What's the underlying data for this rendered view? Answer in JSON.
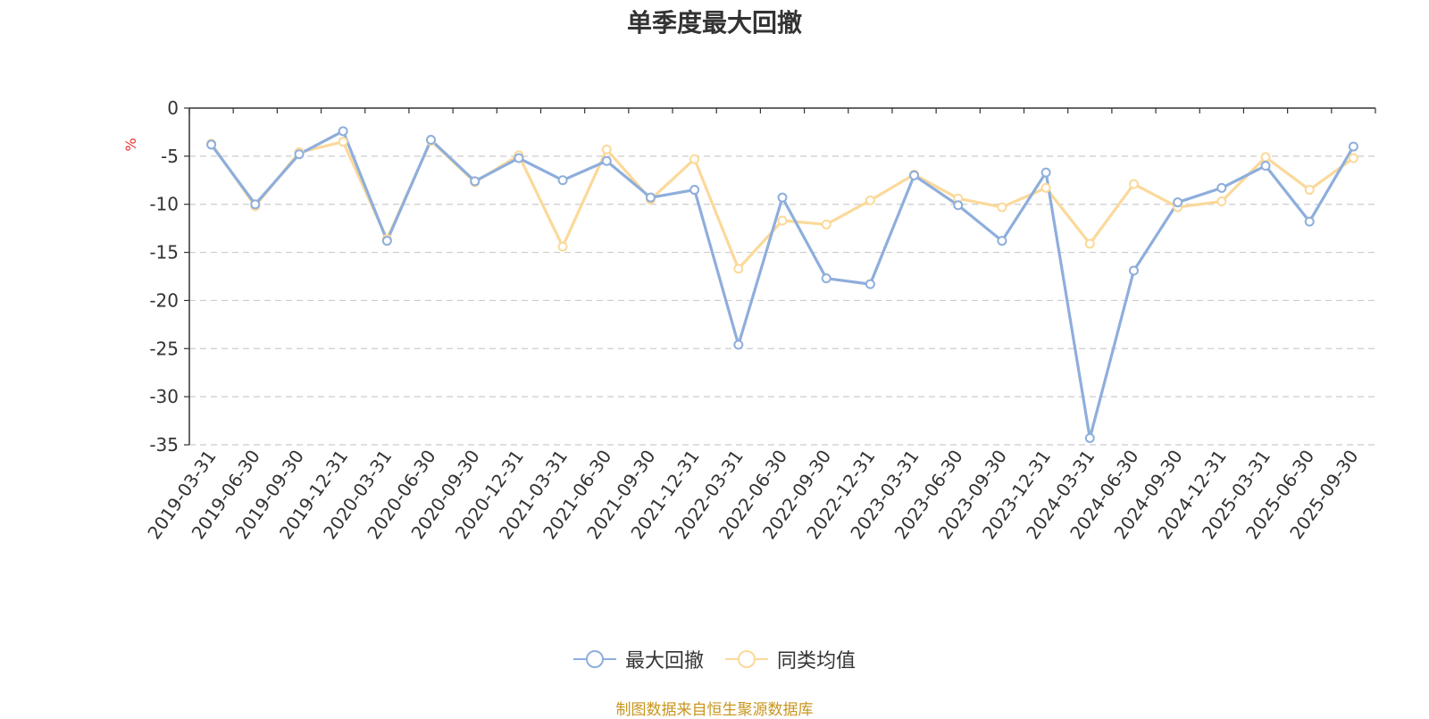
{
  "chart_data": {
    "type": "line",
    "title": "单季度最大回撤",
    "ylabel": "%",
    "ylim": [
      -35,
      0
    ],
    "yticks": [
      0,
      -5,
      -10,
      -15,
      -20,
      -25,
      -30,
      -35
    ],
    "grid": true,
    "legend_position": "bottom",
    "categories": [
      "2019-03-31",
      "2019-06-30",
      "2019-09-30",
      "2019-12-31",
      "2020-03-31",
      "2020-06-30",
      "2020-09-30",
      "2020-12-31",
      "2021-03-31",
      "2021-06-30",
      "2021-09-30",
      "2021-12-31",
      "2022-03-31",
      "2022-06-30",
      "2022-09-30",
      "2022-12-31",
      "2023-03-31",
      "2023-06-30",
      "2023-09-30",
      "2023-12-31",
      "2024-03-31",
      "2024-06-30",
      "2024-09-30",
      "2024-12-31",
      "2025-03-31",
      "2025-06-30",
      "2025-09-30"
    ],
    "series": [
      {
        "name": "最大回撤",
        "color": "#8eaedc",
        "values": [
          -3.8,
          -10.0,
          -4.8,
          -2.4,
          -13.8,
          -3.3,
          -7.6,
          -5.2,
          -7.5,
          -5.5,
          -9.3,
          -8.5,
          -24.6,
          -9.3,
          -17.7,
          -18.3,
          -7.0,
          -10.1,
          -13.8,
          -6.7,
          -34.3,
          -16.9,
          -9.8,
          -8.3,
          -6.0,
          -11.8,
          -4.0
        ]
      },
      {
        "name": "同类均值",
        "color": "#fbd99a",
        "values": [
          -3.7,
          -10.2,
          -4.6,
          -3.5,
          -13.6,
          -3.4,
          -7.7,
          -4.9,
          -14.4,
          -4.3,
          -9.5,
          -5.3,
          -16.7,
          -11.7,
          -12.1,
          -9.6,
          -6.9,
          -9.4,
          -10.3,
          -8.3,
          -14.1,
          -7.9,
          -10.3,
          -9.7,
          -5.1,
          -8.5,
          -5.2
        ]
      }
    ]
  },
  "source_text": "制图数据来自恒生聚源数据库",
  "colors": {
    "axis": "#333333",
    "grid": "#cccccc",
    "ylabel": "#e8312f",
    "source": "#c8961e"
  }
}
